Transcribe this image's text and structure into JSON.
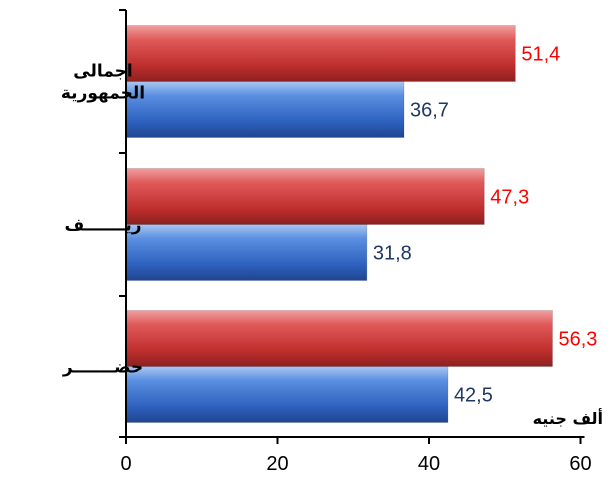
{
  "chart_data": {
    "type": "bar",
    "orientation": "horizontal",
    "categories": [
      "حضـــــــر",
      "ريـــــــف",
      "اجمالى الجمهورية"
    ],
    "series": [
      {
        "values": [
          42.5,
          31.8,
          36.7
        ],
        "value_labels": [
          "42,5",
          "31,8",
          "36,7"
        ],
        "color": "#4a7fd4",
        "label_color": "#1f3864"
      },
      {
        "values": [
          56.3,
          47.3,
          51.4
        ],
        "value_labels": [
          "56,3",
          "47,3",
          "51,4"
        ],
        "color": "#cc3b3b",
        "label_color": "#ff0000"
      }
    ],
    "xlim": [
      0,
      60
    ],
    "xticks": [
      "0",
      "20",
      "40",
      "60"
    ],
    "unit_label": "ألف جنيه",
    "grid": false,
    "legend": "none"
  }
}
